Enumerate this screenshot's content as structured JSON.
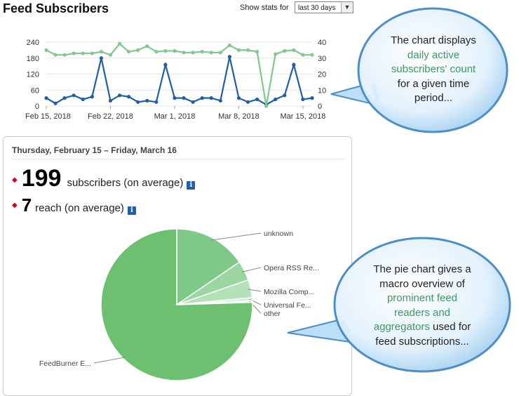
{
  "header": {
    "title": "Feed Subscribers",
    "stats_label": "Show stats for",
    "period_selected": "last 30 days"
  },
  "chart_data": [
    {
      "type": "line",
      "x_ticks": [
        "Feb 15, 2018",
        "Feb 22, 2018",
        "Mar 1, 2018",
        "Mar 8, 2018",
        "Mar 15, 2018"
      ],
      "y_left_ticks": [
        "240",
        "180",
        "120",
        "60",
        "0"
      ],
      "y_right_ticks": [
        "40",
        "30",
        "20",
        "10",
        "0"
      ],
      "ylim_left": [
        0,
        240
      ],
      "ylim_right": [
        0,
        40
      ],
      "grid": true,
      "series": [
        {
          "axis": "left",
          "color": "#1f5fa8",
          "values": [
            30,
            10,
            30,
            40,
            25,
            35,
            180,
            20,
            40,
            35,
            15,
            20,
            15,
            155,
            30,
            30,
            15,
            30,
            30,
            20,
            185,
            30,
            15,
            25,
            5,
            25,
            40,
            155,
            25,
            30
          ]
        },
        {
          "axis": "right",
          "color": "#7fc88e",
          "values": [
            35,
            32,
            32,
            33,
            33,
            33,
            34,
            32,
            39,
            34,
            35,
            37.5,
            34,
            34.5,
            34.5,
            33.5,
            33.5,
            34,
            33.5,
            33.5,
            38,
            35,
            35,
            34,
            0,
            32.5,
            34.5,
            35,
            32,
            32
          ]
        }
      ]
    },
    {
      "type": "pie",
      "slices": [
        {
          "label": "FeedBurner E...",
          "value": 75.5,
          "color": "#6cc06f"
        },
        {
          "label": "unknown",
          "value": 15.5,
          "color": "#7fc988"
        },
        {
          "label": "Opera RSS Re...",
          "value": 4.2,
          "color": "#9bd6a2"
        },
        {
          "label": "Mozilla Comp...",
          "value": 3.8,
          "color": "#b4e1b8"
        },
        {
          "label": "Universal Fe...",
          "value": 0.6,
          "color": "#c9ebcb"
        },
        {
          "label": "other",
          "value": 0.4,
          "color": "#d9f1da"
        }
      ]
    }
  ],
  "summary": {
    "date_range": "Thursday, February 15 – Friday, March 16",
    "subscribers_value": "199",
    "subscribers_label": "subscribers (on average)",
    "reach_value": "7",
    "reach_label": "reach (on average)",
    "info_glyph": "i"
  },
  "callouts": {
    "top": {
      "line1": "The chart displays",
      "line2": "daily active",
      "line3": "subscribers' count",
      "line4": "for a given time",
      "line5": "period..."
    },
    "bottom": {
      "line1": "The pie chart gives a",
      "line2": "macro overview of",
      "line3": "prominent feed",
      "line4": "readers and",
      "line5a": "aggregators",
      "line5b": " used for",
      "line6": "feed subscriptions..."
    }
  }
}
